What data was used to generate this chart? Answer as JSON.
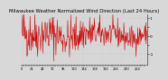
{
  "title": "Milwaukee Weather Normalized Wind Direction (Last 24 Hours)",
  "line_color": "#cc0000",
  "background_color": "#d8d8d8",
  "plot_bg_color": "#d8d8d8",
  "grid_color": "#bbbbbb",
  "ylim": [
    -1.6,
    1.2
  ],
  "yticks": [
    -1.0,
    -0.5,
    0.0,
    0.5,
    1.0
  ],
  "ytick_labels": [
    "-1",
    "",
    "0",
    "",
    "1"
  ],
  "n_points": 288,
  "seed": 42,
  "title_fontsize": 3.8,
  "tick_fontsize": 3.2,
  "xlabel_fontsize": 2.5,
  "linewidth": 0.4
}
